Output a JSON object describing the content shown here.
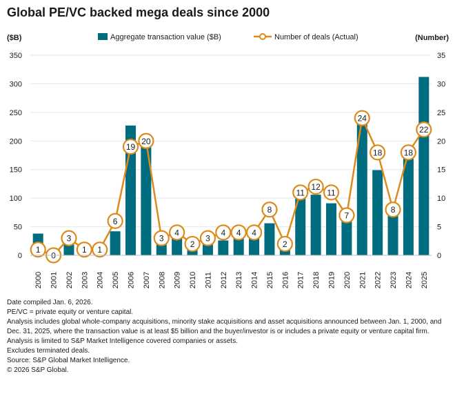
{
  "colors": {
    "bar": "#006c7f",
    "line": "#dd8a1b",
    "grid": "#e6e6e6",
    "text": "#1a1a1a"
  },
  "chart_data": {
    "type": "bar",
    "title": "Global PE/VC backed mega deals since 2000",
    "left_axis_label": "($B)",
    "right_axis_label": "(Number)",
    "legend": {
      "bar": "Aggregate transaction value ($B)",
      "line": "Number of deals (Actual)"
    },
    "left_ylim": [
      0,
      350
    ],
    "left_ticks": [
      "0",
      "50",
      "100",
      "150",
      "200",
      "250",
      "300",
      "350"
    ],
    "right_ylim": [
      0,
      35
    ],
    "right_ticks": [
      "0",
      "5",
      "10",
      "15",
      "20",
      "25",
      "30",
      "35"
    ],
    "categories": [
      "2000",
      "2001",
      "2002",
      "2003",
      "2004",
      "2005",
      "2006",
      "2007",
      "2008",
      "2009",
      "2010",
      "2011",
      "2012",
      "2013",
      "2014",
      "2015",
      "2016",
      "2017",
      "2018",
      "2019",
      "2020",
      "2021",
      "2022",
      "2023",
      "2024",
      "2025"
    ],
    "series": [
      {
        "name": "Aggregate transaction value ($B)",
        "type": "bar",
        "axis": "left",
        "values": [
          38,
          0,
          30,
          0,
          5,
          42,
          227,
          193,
          25,
          35,
          13,
          22,
          26,
          34,
          37,
          56,
          17,
          107,
          106,
          91,
          63,
          243,
          149,
          73,
          184,
          312
        ]
      },
      {
        "name": "Number of deals (Actual)",
        "type": "line",
        "axis": "right",
        "values": [
          1,
          0,
          3,
          1,
          1,
          6,
          19,
          20,
          3,
          4,
          2,
          3,
          4,
          4,
          4,
          8,
          2,
          11,
          12,
          11,
          7,
          24,
          18,
          8,
          18,
          22
        ]
      }
    ]
  },
  "notes": [
    "Date compiled Jan. 6, 2026.",
    "PE/VC = private equity or venture capital.",
    "Analysis includes global whole-company acquisitions, minority stake acquisitions and asset acquisitions announced between Jan. 1, 2000, and Dec. 31, 2025, where the transaction value is at least $5 billion and the buyer/investor is or includes a private equity or venture capital firm.",
    "Analysis is limited to S&P Market Intelligence covered companies or assets.",
    "Excludes terminated deals.",
    "Source: S&P Global Market Intelligence.",
    "© 2026 S&P Global."
  ]
}
